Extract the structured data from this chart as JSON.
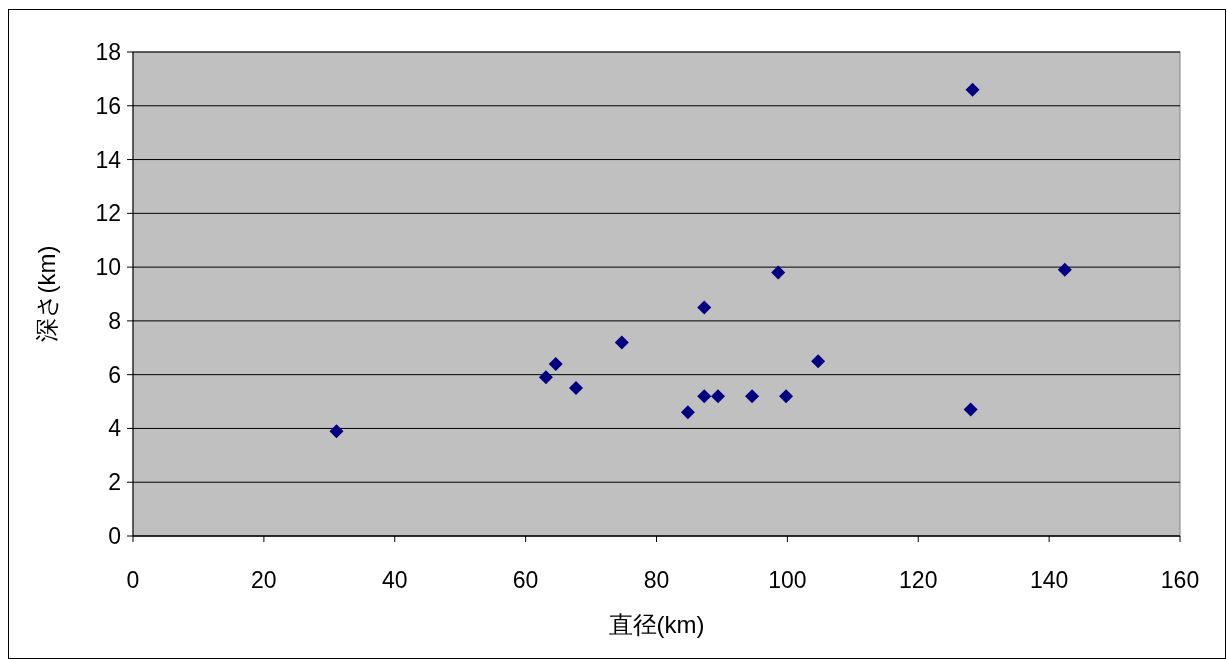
{
  "chart_data": {
    "type": "scatter",
    "xlabel": "直径(km)",
    "ylabel": "深さ(km)",
    "x": [
      31.1,
      63.1,
      64.6,
      67.7,
      74.7,
      84.8,
      87.3,
      87.3,
      89.4,
      94.6,
      98.6,
      99.8,
      104.7,
      128.0,
      128.3,
      142.4
    ],
    "values": [
      3.9,
      5.9,
      6.4,
      5.5,
      7.2,
      4.6,
      8.5,
      5.2,
      5.2,
      5.2,
      9.8,
      5.2,
      6.5,
      4.7,
      16.6,
      9.9
    ],
    "color": "#000080",
    "marker": "diamond",
    "grid": "y",
    "xlim": [
      0,
      160
    ],
    "ylim": [
      0,
      18
    ],
    "xticks": [
      0,
      20,
      40,
      60,
      80,
      100,
      120,
      140,
      160
    ],
    "yticks": [
      0,
      2,
      4,
      6,
      8,
      10,
      12,
      14,
      16,
      18
    ]
  }
}
